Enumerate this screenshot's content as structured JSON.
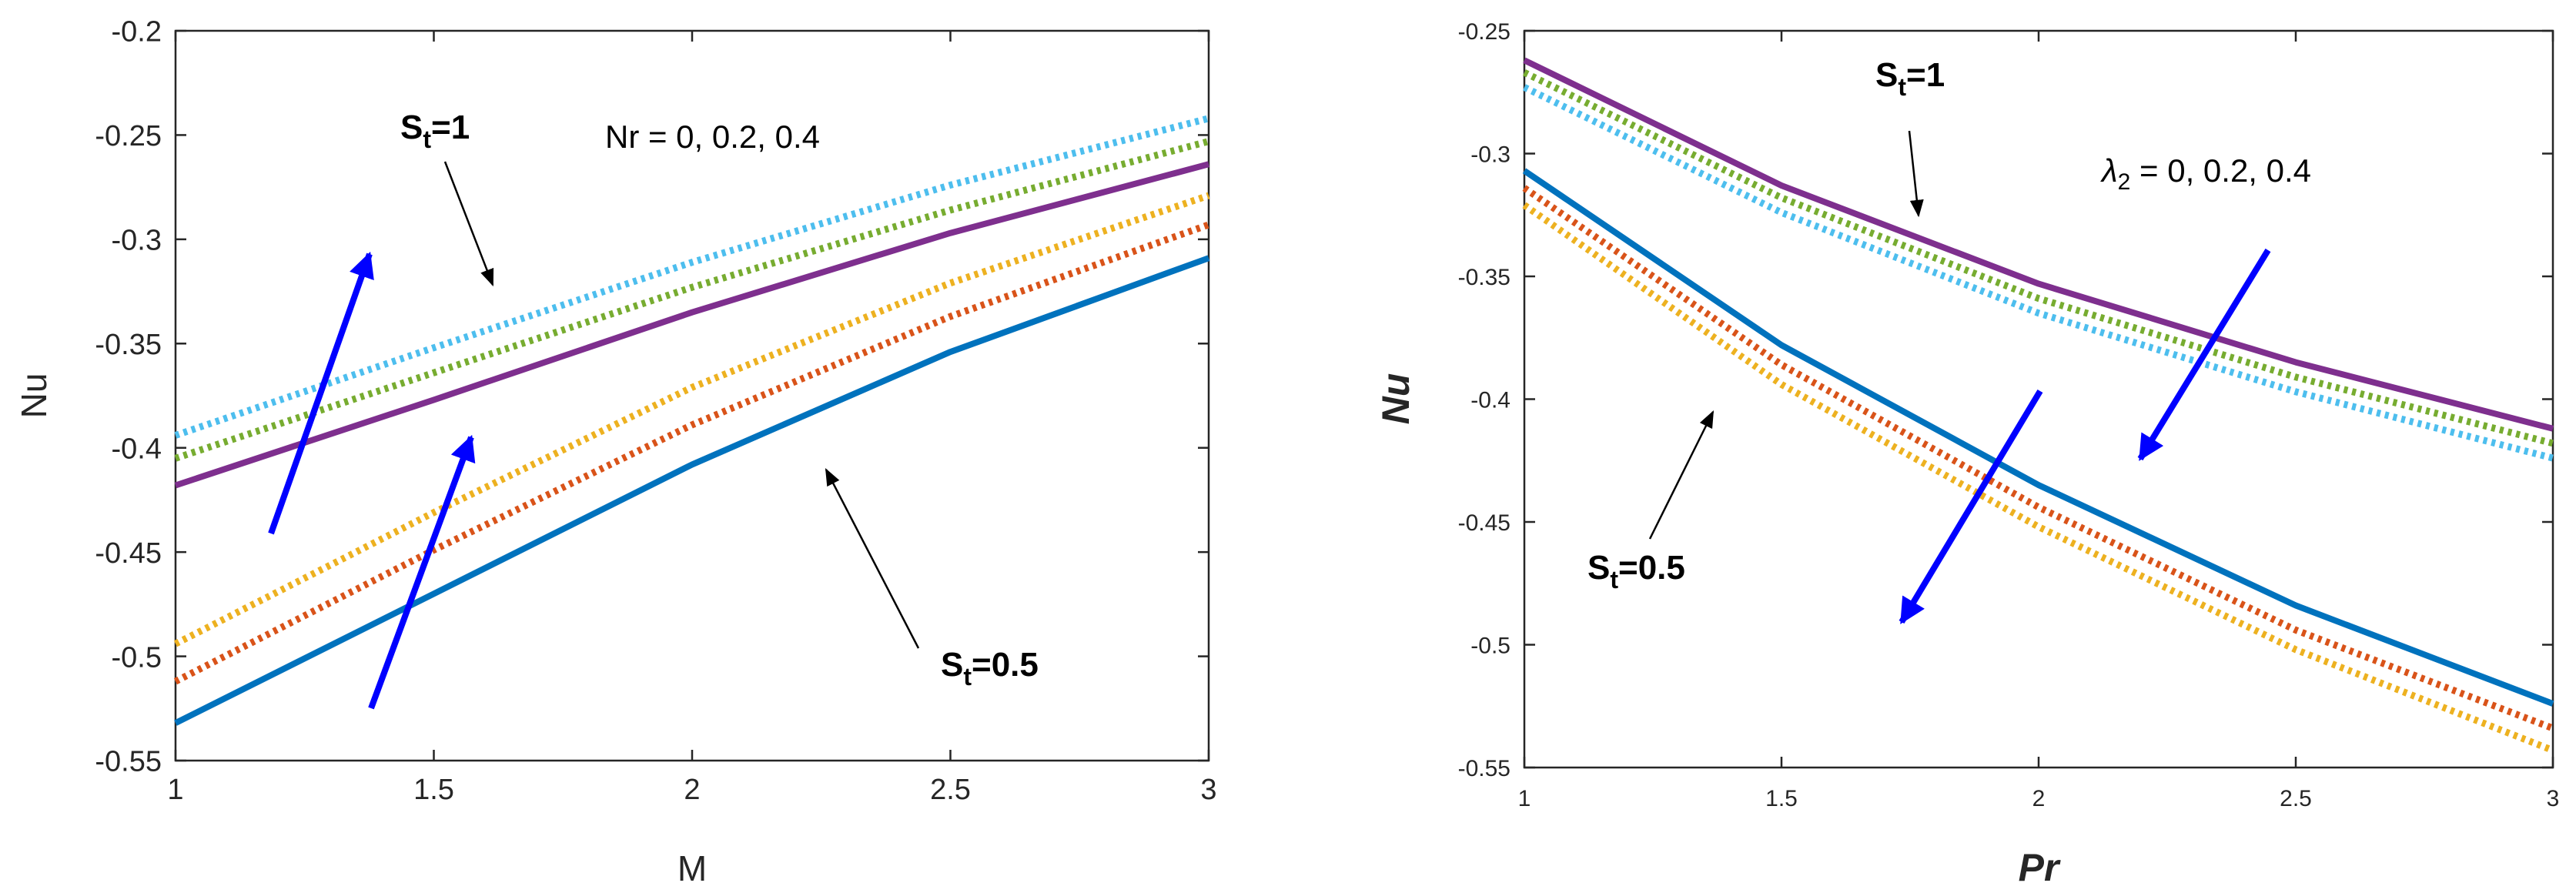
{
  "chart_data": [
    {
      "type": "line",
      "xlabel": "M",
      "ylabel": "Nu",
      "xlim": [
        1,
        3
      ],
      "ylim": [
        -0.55,
        -0.2
      ],
      "xticks": [
        "1",
        "1.5",
        "2",
        "2.5",
        "3"
      ],
      "yticks": [
        "-0.2",
        "-0.25",
        "-0.3",
        "-0.35",
        "-0.4",
        "-0.45",
        "-0.5",
        "-0.55"
      ],
      "x": [
        1,
        1.5,
        2,
        2.5,
        3
      ],
      "series": [
        {
          "name": "St=1, Nr=0",
          "style": "solid",
          "color": "#7E2F8E",
          "values": [
            -0.418,
            -0.377,
            -0.335,
            -0.297,
            -0.264
          ]
        },
        {
          "name": "St=1, Nr=0.2",
          "style": "dotted",
          "color": "#77AC30",
          "values": [
            -0.405,
            -0.364,
            -0.323,
            -0.286,
            -0.253
          ]
        },
        {
          "name": "St=1, Nr=0.4",
          "style": "dotted",
          "color": "#4DBEEE",
          "values": [
            -0.394,
            -0.352,
            -0.311,
            -0.274,
            -0.242
          ]
        },
        {
          "name": "St=0.5, Nr=0",
          "style": "solid",
          "color": "#0072BD",
          "values": [
            -0.532,
            -0.47,
            -0.408,
            -0.354,
            -0.309
          ]
        },
        {
          "name": "St=0.5, Nr=0.2",
          "style": "dotted",
          "color": "#D95319",
          "values": [
            -0.512,
            -0.449,
            -0.389,
            -0.337,
            -0.293
          ]
        },
        {
          "name": "St=0.5, Nr=0.4",
          "style": "dotted",
          "color": "#EDB120",
          "values": [
            -0.494,
            -0.431,
            -0.371,
            -0.321,
            -0.279
          ]
        }
      ],
      "annotations": {
        "st1_main": "S",
        "st1_sub": "t",
        "st1_value": "=1",
        "st05_main": "S",
        "st05_sub": "t",
        "st05_value": "=0.5",
        "param_text": "Nr = 0, 0.2, 0.4"
      }
    },
    {
      "type": "line",
      "xlabel": "Pr",
      "ylabel": "Nu",
      "xlim": [
        1,
        3
      ],
      "ylim": [
        -0.55,
        -0.25
      ],
      "xticks": [
        "1",
        "1.5",
        "2",
        "2.5",
        "3"
      ],
      "yticks": [
        "-0.25",
        "-0.3",
        "-0.35",
        "-0.4",
        "-0.45",
        "-0.5",
        "-0.55"
      ],
      "x": [
        1,
        1.5,
        2,
        2.5,
        3
      ],
      "series": [
        {
          "name": "St=1, λ2=0",
          "style": "solid",
          "color": "#7E2F8E",
          "values": [
            -0.262,
            -0.313,
            -0.353,
            -0.385,
            -0.412
          ]
        },
        {
          "name": "St=1, λ2=0.2",
          "style": "dotted",
          "color": "#77AC30",
          "values": [
            -0.267,
            -0.318,
            -0.359,
            -0.391,
            -0.418
          ]
        },
        {
          "name": "St=1, λ2=0.4",
          "style": "dotted",
          "color": "#4DBEEE",
          "values": [
            -0.273,
            -0.324,
            -0.365,
            -0.397,
            -0.424
          ]
        },
        {
          "name": "St=0.5, λ2=0",
          "style": "solid",
          "color": "#0072BD",
          "values": [
            -0.307,
            -0.378,
            -0.435,
            -0.484,
            -0.524
          ]
        },
        {
          "name": "St=0.5, λ2=0.2",
          "style": "dotted",
          "color": "#D95319",
          "values": [
            -0.314,
            -0.386,
            -0.444,
            -0.494,
            -0.534
          ]
        },
        {
          "name": "St=0.5, λ2=0.4",
          "style": "dotted",
          "color": "#EDB120",
          "values": [
            -0.321,
            -0.394,
            -0.452,
            -0.502,
            -0.543
          ]
        }
      ],
      "annotations": {
        "st1_main": "S",
        "st1_sub": "t",
        "st1_value": "=1",
        "st05_main": "S",
        "st05_sub": "t",
        "st05_value": "=0.5",
        "param_symbol": "λ",
        "param_sub": "2",
        "param_rest": " = 0, 0.2, 0.4"
      }
    }
  ]
}
